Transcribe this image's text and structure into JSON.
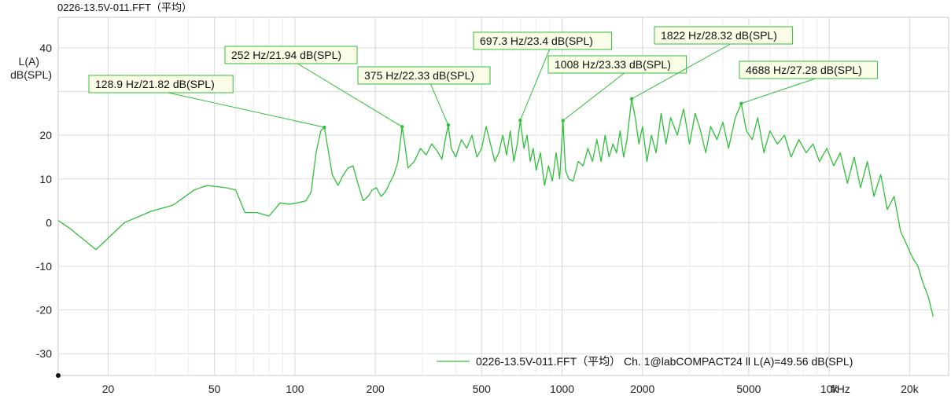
{
  "chart_data": {
    "type": "line",
    "title": "0226-13.5V-011.FFT（平均）",
    "ylabel_line1": "L(A)",
    "ylabel_line2": "dB(SPL)",
    "xlabel": "f/Hz",
    "x_scale": "log",
    "xlim": [
      13,
      28000
    ],
    "ylim": [
      -35,
      47
    ],
    "grid": true,
    "y_ticks": [
      40,
      30,
      20,
      10,
      0,
      -10,
      -20,
      -30
    ],
    "y_tick_labels": [
      "40",
      "",
      "20",
      "10",
      "0",
      "-10",
      "-20",
      "-30"
    ],
    "x_ticks": [
      20,
      50,
      100,
      200,
      500,
      1000,
      2000,
      5000,
      10000,
      20000
    ],
    "x_tick_labels": [
      "20",
      "50",
      "100",
      "200",
      "500",
      "1000",
      "2000",
      "5000",
      "10k",
      "20k"
    ],
    "minor_x_ticks": [
      30,
      40,
      60,
      70,
      80,
      90,
      300,
      400,
      600,
      700,
      800,
      900,
      3000,
      4000,
      6000,
      7000,
      8000,
      9000
    ],
    "line_color": "#2fbf3a",
    "legend_placement": "bottom-right",
    "series": [
      {
        "name": "0226-13.5V-011.FFT（平均） Ch. 1@labCOMPACT24 ll L(A)=49.56 dB(SPL)",
        "x": [
          13,
          14.5,
          18,
          23,
          29,
          35,
          42,
          47,
          55,
          60,
          65,
          72,
          80,
          88,
          95,
          102,
          110,
          115,
          120,
          125,
          128.9,
          132,
          138,
          145,
          152,
          158,
          165,
          172,
          180,
          188,
          195,
          202,
          210,
          218,
          226,
          235,
          243,
          252,
          258,
          265,
          280,
          295,
          310,
          325,
          340,
          355,
          368,
          375,
          385,
          400,
          420,
          440,
          460,
          480,
          500,
          520,
          540,
          560,
          580,
          600,
          620,
          640,
          660,
          680,
          697.3,
          720,
          740,
          760,
          780,
          800,
          830,
          860,
          890,
          920,
          950,
          980,
          1008,
          1030,
          1060,
          1100,
          1150,
          1200,
          1250,
          1300,
          1350,
          1400,
          1450,
          1500,
          1550,
          1600,
          1650,
          1700,
          1750,
          1822,
          1880,
          1940,
          2000,
          2080,
          2160,
          2250,
          2350,
          2450,
          2550,
          2700,
          2850,
          3000,
          3150,
          3300,
          3450,
          3600,
          3800,
          4000,
          4200,
          4450,
          4688,
          4900,
          5150,
          5400,
          5700,
          6000,
          6400,
          6800,
          7200,
          7700,
          8200,
          8700,
          9200,
          9800,
          10400,
          11000,
          11700,
          12400,
          13100,
          13900,
          14700,
          15600,
          16500,
          17500,
          18500,
          19500,
          20500,
          21500,
          22500,
          23500,
          24500
        ],
        "y": [
          0.5,
          -1.5,
          -6.2,
          0,
          2.6,
          4,
          7.5,
          8.5,
          8,
          7.5,
          2.3,
          2.3,
          1.5,
          4.5,
          4.2,
          4.5,
          5,
          7,
          16,
          21,
          21.82,
          18,
          11,
          8.5,
          11,
          12.5,
          13,
          9,
          5,
          6,
          7.5,
          8,
          6,
          7,
          9,
          11,
          14,
          21.94,
          18,
          12.5,
          14,
          17,
          15.5,
          18,
          16.5,
          14.5,
          20,
          22.33,
          17,
          15,
          19,
          17,
          20,
          15,
          17,
          22,
          18,
          14,
          16,
          20,
          15.5,
          21,
          14,
          18,
          23.4,
          17,
          20,
          14,
          17,
          12,
          16,
          8.5,
          13,
          9.5,
          16,
          10,
          23.33,
          12,
          10,
          9.5,
          14,
          13,
          17,
          14,
          19,
          14,
          20,
          15,
          18,
          16,
          21,
          15,
          19,
          28.32,
          24,
          18,
          22,
          14,
          20,
          16,
          25,
          18,
          24,
          20,
          26,
          18,
          25,
          21,
          16,
          22,
          19,
          23,
          17,
          24,
          27.28,
          21,
          19,
          24,
          16,
          21,
          18,
          20,
          15,
          19,
          16,
          18,
          14,
          17,
          13,
          16,
          9,
          15,
          8,
          14,
          6,
          11,
          3,
          6,
          -2,
          -5,
          -8,
          -10,
          -14,
          -17,
          -21.5
        ],
        "annotations": [
          {
            "x": 128.9,
            "y": 21.82,
            "text": "128.9 Hz/21.82 dB(SPL)"
          },
          {
            "x": 252,
            "y": 21.94,
            "text": "252 Hz/21.94 dB(SPL)"
          },
          {
            "x": 375,
            "y": 22.33,
            "text": "375 Hz/22.33 dB(SPL)"
          },
          {
            "x": 697.3,
            "y": 23.4,
            "text": "697.3 Hz/23.4 dB(SPL)"
          },
          {
            "x": 1008,
            "y": 23.33,
            "text": "1008 Hz/23.33 dB(SPL)"
          },
          {
            "x": 1822,
            "y": 28.32,
            "text": "1822 Hz/28.32 dB(SPL)"
          },
          {
            "x": 4688,
            "y": 27.28,
            "text": "4688 Hz/27.28 dB(SPL)"
          }
        ]
      }
    ]
  }
}
